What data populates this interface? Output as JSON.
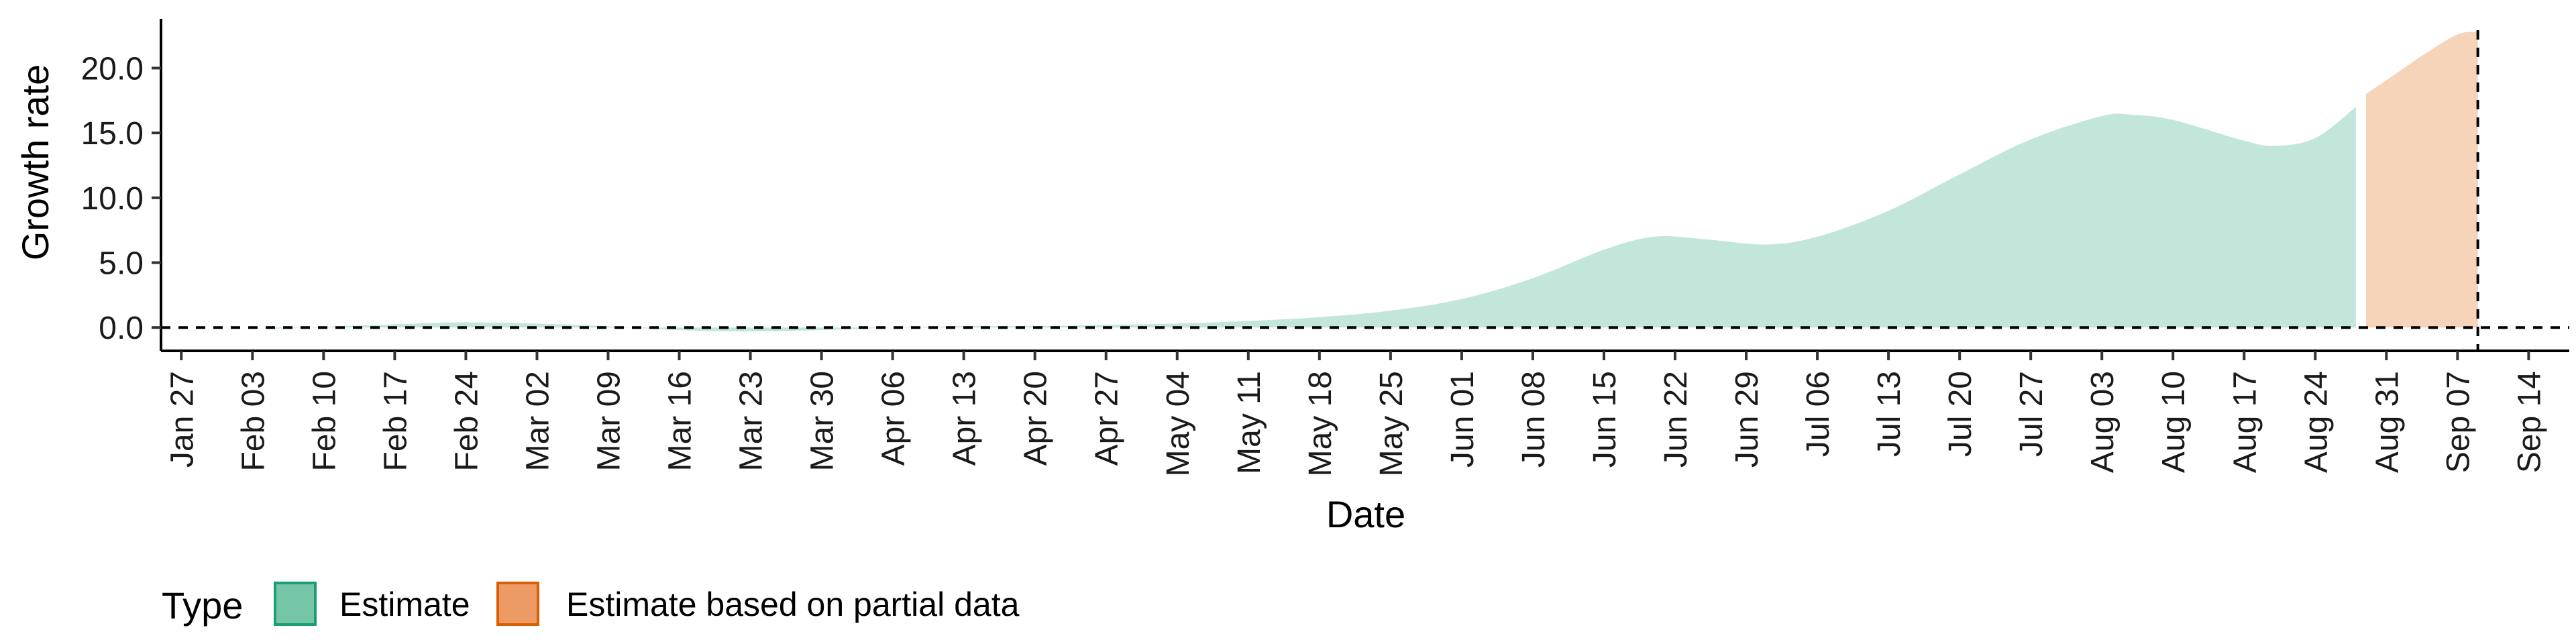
{
  "chart_data": {
    "type": "area",
    "xlabel": "Date",
    "ylabel": "Growth rate",
    "x_range": [
      "2020-01-25",
      "2020-09-18"
    ],
    "ylim": [
      -1.8,
      23.8
    ],
    "y_ticks": [
      0.0,
      5.0,
      10.0,
      15.0,
      20.0
    ],
    "y_tick_labels": [
      "0.0",
      "5.0",
      "10.0",
      "15.0",
      "20.0"
    ],
    "x_ticks": [
      "2020-01-27",
      "2020-02-03",
      "2020-02-10",
      "2020-02-17",
      "2020-02-24",
      "2020-03-02",
      "2020-03-09",
      "2020-03-16",
      "2020-03-23",
      "2020-03-30",
      "2020-04-06",
      "2020-04-13",
      "2020-04-20",
      "2020-04-27",
      "2020-05-04",
      "2020-05-11",
      "2020-05-18",
      "2020-05-25",
      "2020-06-01",
      "2020-06-08",
      "2020-06-15",
      "2020-06-22",
      "2020-06-29",
      "2020-07-06",
      "2020-07-13",
      "2020-07-20",
      "2020-07-27",
      "2020-08-03",
      "2020-08-10",
      "2020-08-17",
      "2020-08-24",
      "2020-08-31",
      "2020-09-07",
      "2020-09-14"
    ],
    "x_tick_labels": [
      "Jan 27",
      "Feb 03",
      "Feb 10",
      "Feb 17",
      "Feb 24",
      "Mar 02",
      "Mar 09",
      "Mar 16",
      "Mar 23",
      "Mar 30",
      "Apr 06",
      "Apr 13",
      "Apr 20",
      "Apr 27",
      "May 04",
      "May 11",
      "May 18",
      "May 25",
      "Jun 01",
      "Jun 08",
      "Jun 15",
      "Jun 22",
      "Jun 29",
      "Jul 06",
      "Jul 13",
      "Jul 20",
      "Jul 27",
      "Aug 03",
      "Aug 10",
      "Aug 17",
      "Aug 24",
      "Aug 31",
      "Sep 07",
      "Sep 14"
    ],
    "reference_lines": {
      "horizontal_y": 0,
      "vertical_date": "2020-09-09"
    },
    "grid": false,
    "legend": {
      "title": "Type",
      "position": "bottom-left",
      "entries": [
        {
          "label": "Estimate",
          "fill": "#74c6a6",
          "border": "#1b9e77"
        },
        {
          "label": "Estimate based on partial data",
          "fill": "#ec9b64",
          "border": "#d95f02"
        }
      ]
    },
    "series": [
      {
        "name": "Estimate",
        "fill": "#c3e6da",
        "points": [
          [
            "2020-02-05",
            -0.1
          ],
          [
            "2020-02-12",
            0.1
          ],
          [
            "2020-02-19",
            0.3
          ],
          [
            "2020-02-24",
            0.4
          ],
          [
            "2020-03-02",
            0.3
          ],
          [
            "2020-03-09",
            0.1
          ],
          [
            "2020-03-16",
            -0.2
          ],
          [
            "2020-03-23",
            -0.3
          ],
          [
            "2020-03-30",
            -0.2
          ],
          [
            "2020-04-06",
            0.0
          ],
          [
            "2020-04-13",
            0.1
          ],
          [
            "2020-04-20",
            0.1
          ],
          [
            "2020-04-27",
            0.2
          ],
          [
            "2020-05-04",
            0.3
          ],
          [
            "2020-05-11",
            0.5
          ],
          [
            "2020-05-18",
            0.8
          ],
          [
            "2020-05-25",
            1.3
          ],
          [
            "2020-06-01",
            2.2
          ],
          [
            "2020-06-08",
            3.8
          ],
          [
            "2020-06-15",
            6.0
          ],
          [
            "2020-06-20",
            7.0
          ],
          [
            "2020-06-25",
            6.8
          ],
          [
            "2020-07-01",
            6.4
          ],
          [
            "2020-07-06",
            7.0
          ],
          [
            "2020-07-13",
            9.0
          ],
          [
            "2020-07-20",
            11.8
          ],
          [
            "2020-07-27",
            14.5
          ],
          [
            "2020-08-03",
            16.3
          ],
          [
            "2020-08-06",
            16.4
          ],
          [
            "2020-08-10",
            16.0
          ],
          [
            "2020-08-17",
            14.4
          ],
          [
            "2020-08-20",
            14.0
          ],
          [
            "2020-08-24",
            14.6
          ],
          [
            "2020-08-28",
            17.0
          ]
        ]
      },
      {
        "name": "Estimate based on partial data",
        "fill": "#f5d4ba",
        "points": [
          [
            "2020-08-29",
            18.0
          ],
          [
            "2020-09-01",
            19.6
          ],
          [
            "2020-09-04",
            21.2
          ],
          [
            "2020-09-07",
            22.6
          ],
          [
            "2020-09-09",
            22.8
          ]
        ]
      }
    ]
  }
}
